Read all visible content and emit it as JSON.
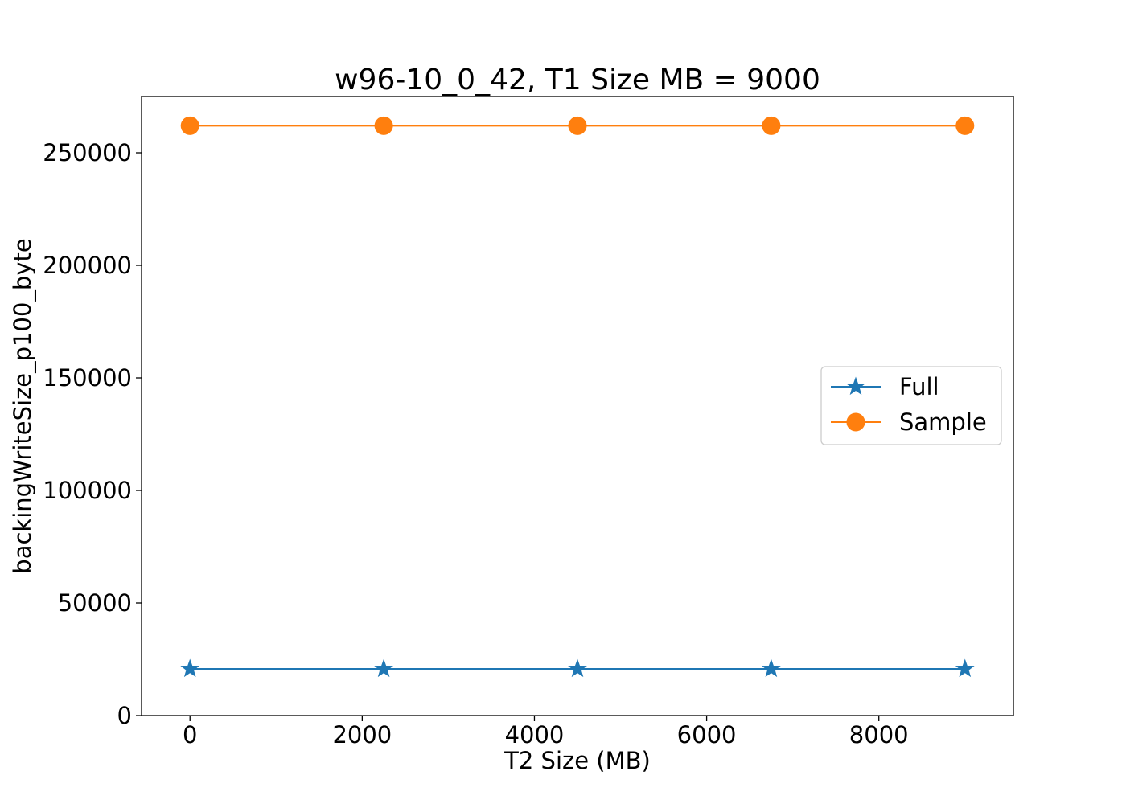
{
  "chart_data": {
    "type": "line",
    "title": "w96-10_0_42, T1 Size MB = 9000",
    "xlabel": "T2 Size (MB)",
    "ylabel": "backingWriteSize_p100_byte",
    "x": [
      0,
      2250,
      4500,
      6750,
      9000
    ],
    "xlim": [
      -562.5,
      9562.5
    ],
    "ylim": [
      0,
      275000
    ],
    "xticks": [
      0,
      2000,
      4000,
      6000,
      8000
    ],
    "yticks": [
      0,
      50000,
      100000,
      150000,
      200000,
      250000
    ],
    "grid": false,
    "legend_position": "center-right",
    "series": [
      {
        "name": "Full",
        "marker": "star",
        "color": "#1f77b4",
        "values": [
          20700,
          20700,
          20700,
          20700,
          20700
        ]
      },
      {
        "name": "Sample",
        "marker": "circle",
        "color": "#ff7f0e",
        "values": [
          262000,
          262000,
          262000,
          262000,
          262000
        ]
      }
    ]
  }
}
